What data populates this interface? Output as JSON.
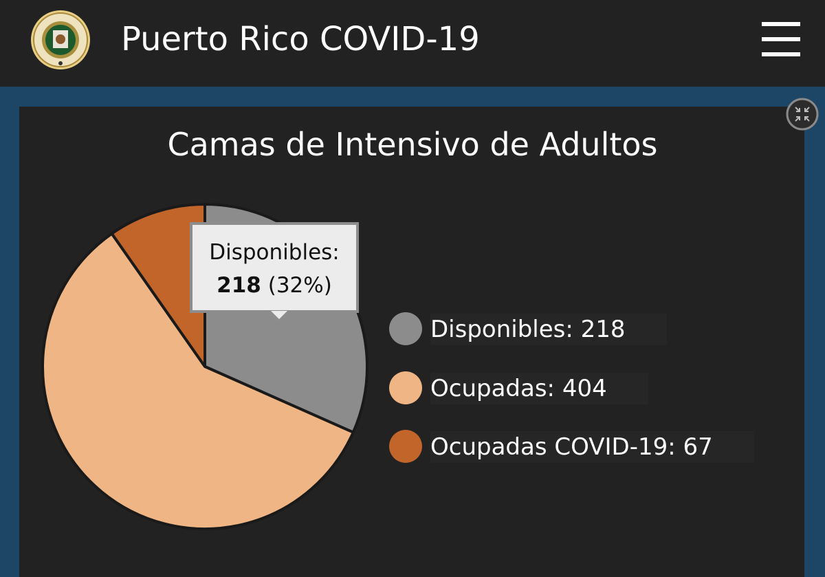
{
  "header": {
    "title": "Puerto Rico COVID-19",
    "seal_icon": "puerto-rico-government-seal-icon",
    "seal_text": "GOBIERNO DE PUERTO RICO",
    "menu_icon": "hamburger-menu-icon"
  },
  "panel": {
    "collapse_icon": "collapse-arrows-icon"
  },
  "tooltip": {
    "name": "Disponibles:",
    "value": "218",
    "percent": "(32%)"
  },
  "legend": [
    {
      "label": "Disponibles:  218",
      "color": "#8c8c8c"
    },
    {
      "label": "Ocupadas:  404",
      "color": "#efb584"
    },
    {
      "label": "Ocupadas COVID-19:  67",
      "color": "#c1652a"
    }
  ],
  "chart_data": {
    "type": "pie",
    "title": "Camas de Intensivo de Adultos",
    "categories": [
      "Disponibles",
      "Ocupadas",
      "Ocupadas COVID-19"
    ],
    "values": [
      218,
      404,
      67
    ],
    "colors": [
      "#8c8c8c",
      "#efb584",
      "#c1652a"
    ],
    "legend_position": "right"
  }
}
